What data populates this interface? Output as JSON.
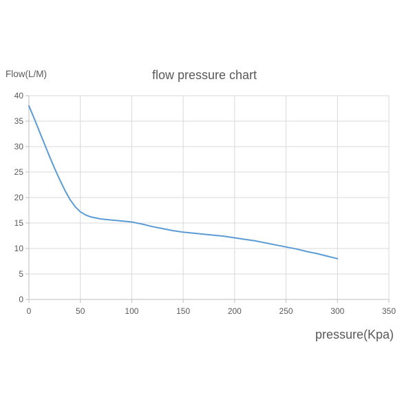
{
  "chart_data": {
    "type": "line",
    "title": "flow pressure chart",
    "xlabel": "pressure(Kpa)",
    "ylabel": "Flow(L/M)",
    "xlim": [
      0,
      350
    ],
    "ylim": [
      0,
      40
    ],
    "xticks": [
      0,
      50,
      100,
      150,
      200,
      250,
      300,
      350
    ],
    "yticks": [
      0,
      5,
      10,
      15,
      20,
      25,
      30,
      35,
      40
    ],
    "grid": true,
    "legend": false,
    "series": [
      {
        "name": "flow",
        "x": [
          0,
          5,
          10,
          15,
          20,
          25,
          30,
          35,
          40,
          45,
          50,
          55,
          60,
          70,
          80,
          90,
          100,
          110,
          120,
          130,
          140,
          150,
          160,
          170,
          180,
          190,
          200,
          210,
          220,
          230,
          240,
          250,
          260,
          270,
          280,
          290,
          300
        ],
        "y": [
          38,
          35.6,
          33.1,
          30.6,
          28.1,
          25.7,
          23.5,
          21.4,
          19.6,
          18.2,
          17.2,
          16.6,
          16.2,
          15.8,
          15.6,
          15.4,
          15.2,
          14.8,
          14.3,
          13.9,
          13.5,
          13.2,
          13.0,
          12.8,
          12.6,
          12.4,
          12.1,
          11.8,
          11.5,
          11.1,
          10.7,
          10.3,
          9.9,
          9.4,
          9.0,
          8.5,
          8.0
        ]
      }
    ],
    "colors": {
      "line": "#5b9bd5",
      "gridline": "#d9d9d9",
      "axis": "#bfbfbf",
      "text": "#595959"
    }
  }
}
